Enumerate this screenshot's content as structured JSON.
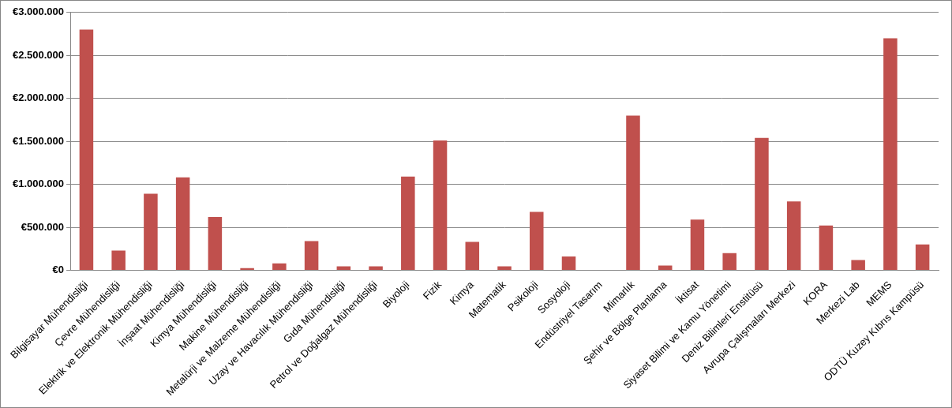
{
  "chart_data": {
    "type": "bar",
    "categories": [
      "Bilgisayar Mühendisliği",
      "Çevre Mühendisliği",
      "Elektrik ve Elektronik Mühendisliği",
      "İnşaat Mühendisliği",
      "Kimya Mühendisliği",
      "Makine Mühendisliği",
      "Metalürji ve Malzeme Mühendisliği",
      "Uzay ve Havacılık Mühendisliği",
      "Gıda Mühendisliği",
      "Petrol ve Doğalgaz Mühendisliği",
      "Biyoloji",
      "Fizik",
      "Kimya",
      "Matematik",
      "Psikoloji",
      "Sosyoloji",
      "Endüstriyel Tasarım",
      "Mimarlık",
      "Şehir ve Bölge Planlama",
      "İktisat",
      "Siyaset Bilimi ve Kamu Yönetimi",
      "Deniz Bilimleri Enstitüsü",
      "Avrupa Çalışmaları Merkezi",
      "KORA",
      "Merkezi Lab",
      "MEMS",
      "ODTÜ Kuzey Kıbrıs Kampüsü"
    ],
    "values": [
      2800000,
      230000,
      890000,
      1080000,
      620000,
      25000,
      80000,
      340000,
      45000,
      45000,
      1090000,
      1510000,
      330000,
      45000,
      680000,
      160000,
      0,
      1800000,
      55000,
      590000,
      200000,
      1540000,
      800000,
      520000,
      120000,
      2700000,
      300000
    ],
    "color": "#c0504d",
    "ylim": [
      0,
      3000000
    ],
    "yticks": [
      {
        "value": 0,
        "label": "€0"
      },
      {
        "value": 500000,
        "label": "€500.000"
      },
      {
        "value": 1000000,
        "label": "€1.000.000"
      },
      {
        "value": 1500000,
        "label": "€1.500.000"
      },
      {
        "value": 2000000,
        "label": "€2.000.000"
      },
      {
        "value": 2500000,
        "label": "€2.500.000"
      },
      {
        "value": 3000000,
        "label": "€3.000.000"
      }
    ],
    "grid": true
  }
}
